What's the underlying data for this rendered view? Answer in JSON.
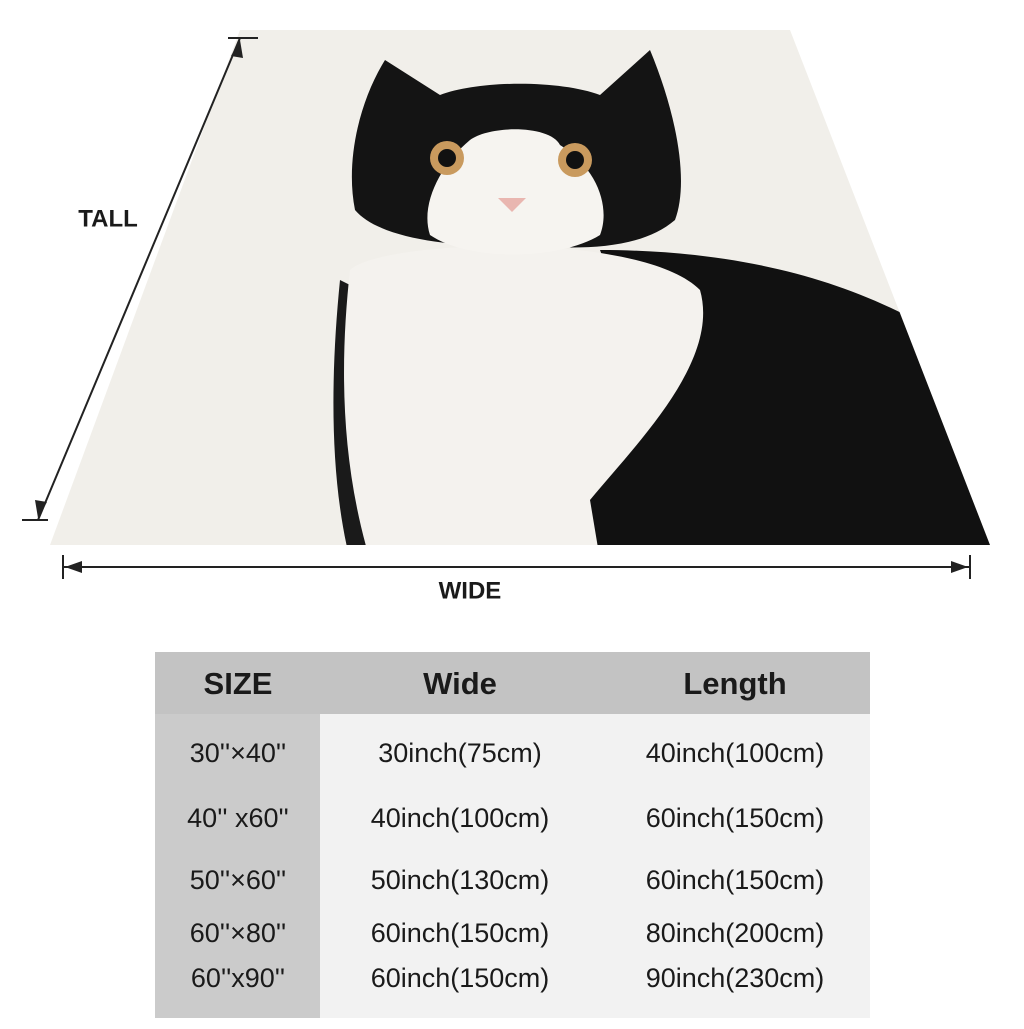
{
  "labels": {
    "tall": "TALL",
    "wide": "WIDE"
  },
  "table": {
    "header": [
      "SIZE",
      "Wide",
      "Length"
    ],
    "rows": [
      [
        "30''×40''",
        "30inch(75cm)",
        "40inch(100cm)"
      ],
      [
        "40'' x60''",
        "40inch(100cm)",
        "60inch(150cm)"
      ],
      [
        "50''×60''",
        "50inch(130cm)",
        "60inch(150cm)"
      ],
      [
        "60''×80''",
        "60inch(150cm)",
        "80inch(200cm)"
      ],
      [
        "60''x90''",
        "60inch(150cm)",
        "90inch(230cm)"
      ]
    ]
  }
}
